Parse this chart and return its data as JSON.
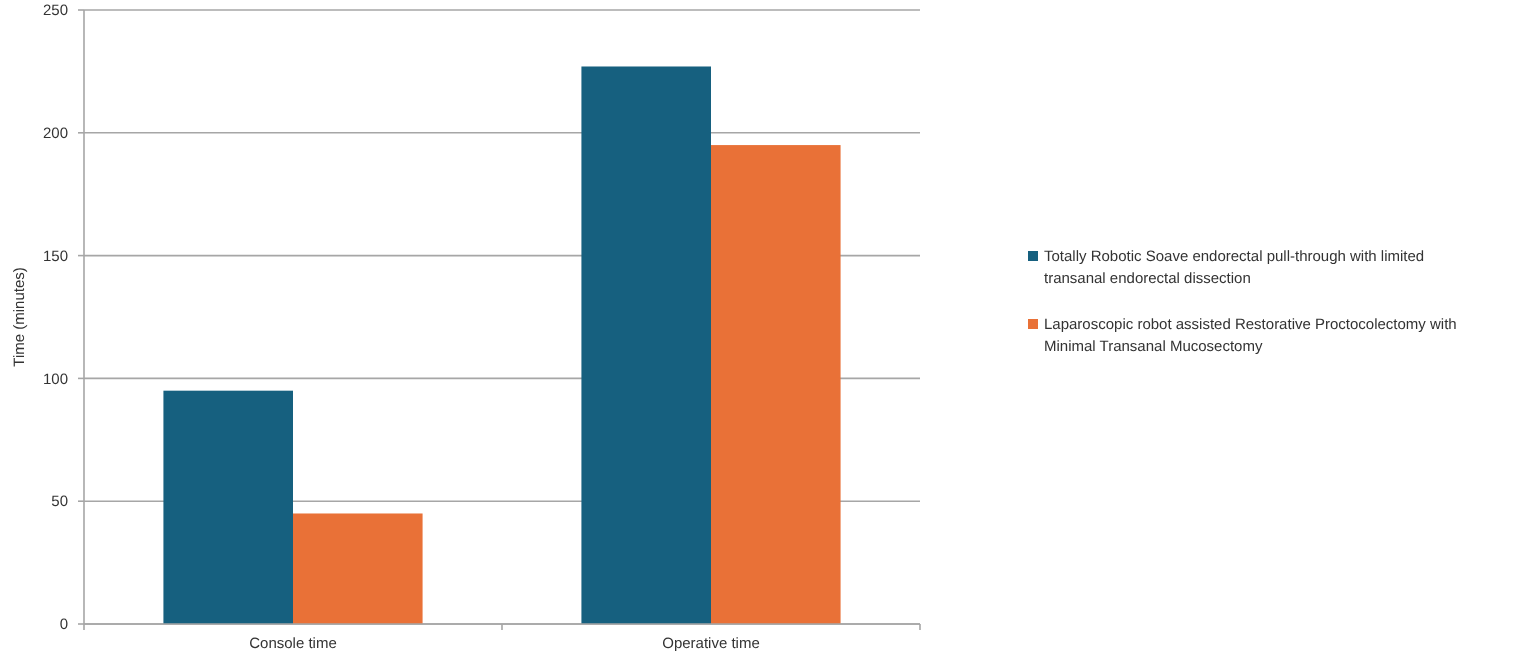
{
  "chart_data": {
    "type": "bar",
    "ylabel": "Time (minutes)",
    "categories": [
      "Console time",
      "Operative time"
    ],
    "series": [
      {
        "name": "Totally Robotic Soave endorectal pull-through with limited transanal endorectal dissection",
        "color": "#16607f",
        "values": [
          95,
          227
        ]
      },
      {
        "name": "Laparoscopic robot assisted Restorative Proctocolectomy with Minimal Transanal Mucosectomy",
        "color": "#e97137",
        "values": [
          45,
          195
        ]
      }
    ],
    "ylim": [
      0,
      250
    ],
    "yticks": [
      0,
      50,
      100,
      150,
      200,
      250
    ],
    "grid": "y",
    "legend": "right"
  }
}
